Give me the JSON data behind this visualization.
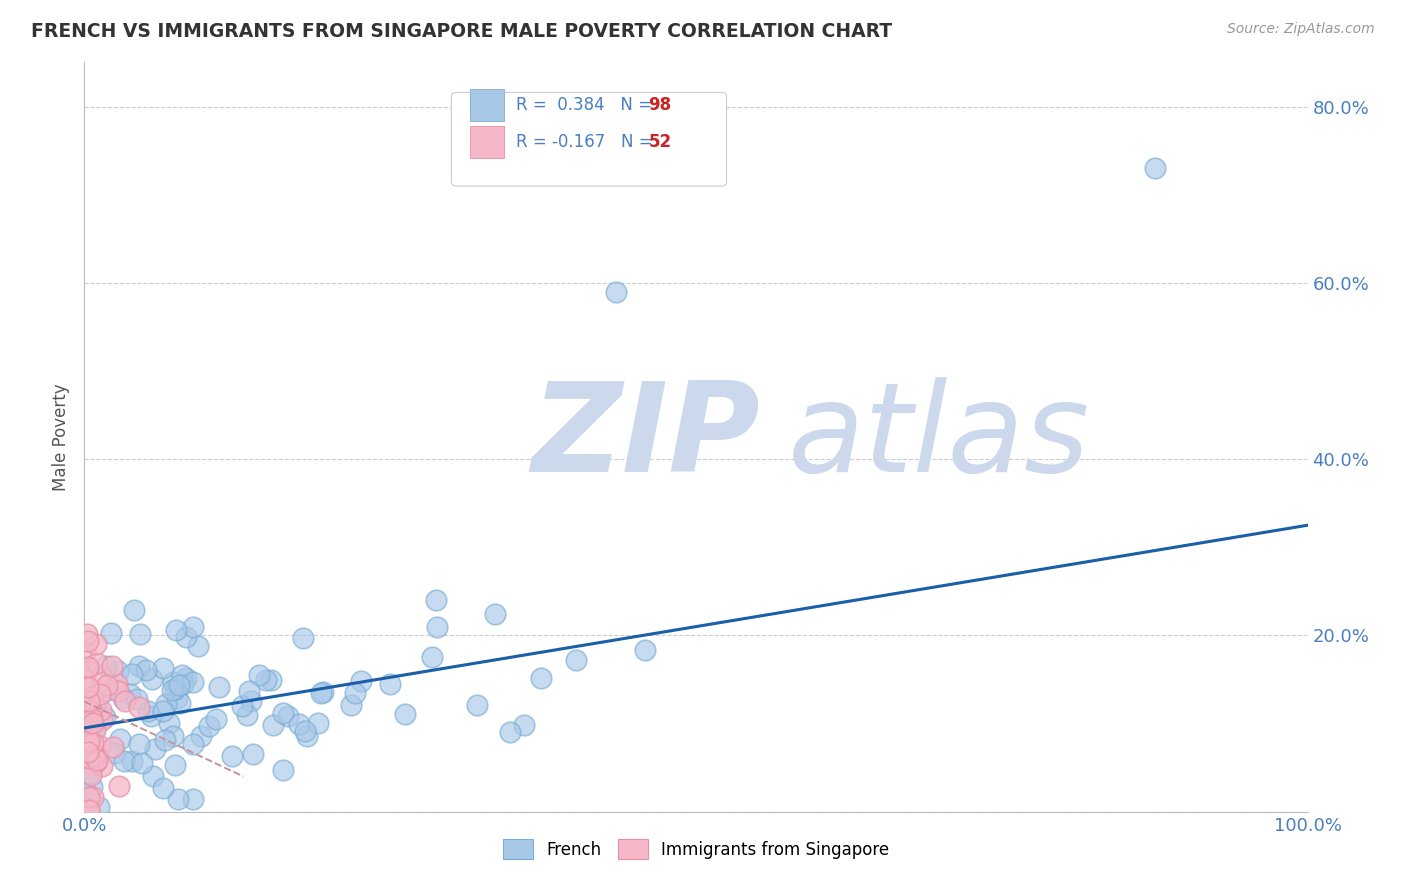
{
  "title": "FRENCH VS IMMIGRANTS FROM SINGAPORE MALE POVERTY CORRELATION CHART",
  "source": "Source: ZipAtlas.com",
  "ylabel": "Male Poverty",
  "xlim": [
    0.0,
    1.0
  ],
  "ylim": [
    0.0,
    0.85
  ],
  "xticks": [
    0.0,
    0.1,
    0.2,
    0.3,
    0.4,
    0.5,
    0.6,
    0.7,
    0.8,
    0.9,
    1.0
  ],
  "yticks": [
    0.0,
    0.2,
    0.4,
    0.6,
    0.8
  ],
  "french_R": 0.384,
  "french_N": 98,
  "singapore_R": -0.167,
  "singapore_N": 52,
  "blue_color": "#a8c8e8",
  "blue_edge_color": "#7aadd4",
  "pink_color": "#f4b8c8",
  "pink_edge_color": "#e890a8",
  "blue_line_color": "#1a5fa8",
  "pink_line_color": "#c8909a",
  "grid_color": "#cccccc",
  "background_color": "#ffffff",
  "watermark_zip_color": "#ccd8ec",
  "watermark_atlas_color": "#ccd8ec",
  "title_color": "#333333",
  "axis_label_color": "#555555",
  "tick_color": "#4a7fc0",
  "legend_text_color": "#333333",
  "legend_R_color": "#4a7fc0",
  "legend_N_color": "#cc2222",
  "blue_trendline_x": [
    0.0,
    1.0
  ],
  "blue_trendline_y": [
    0.095,
    0.325
  ],
  "pink_trendline_x": [
    0.0,
    0.13
  ],
  "pink_trendline_y": [
    0.125,
    0.04
  ]
}
